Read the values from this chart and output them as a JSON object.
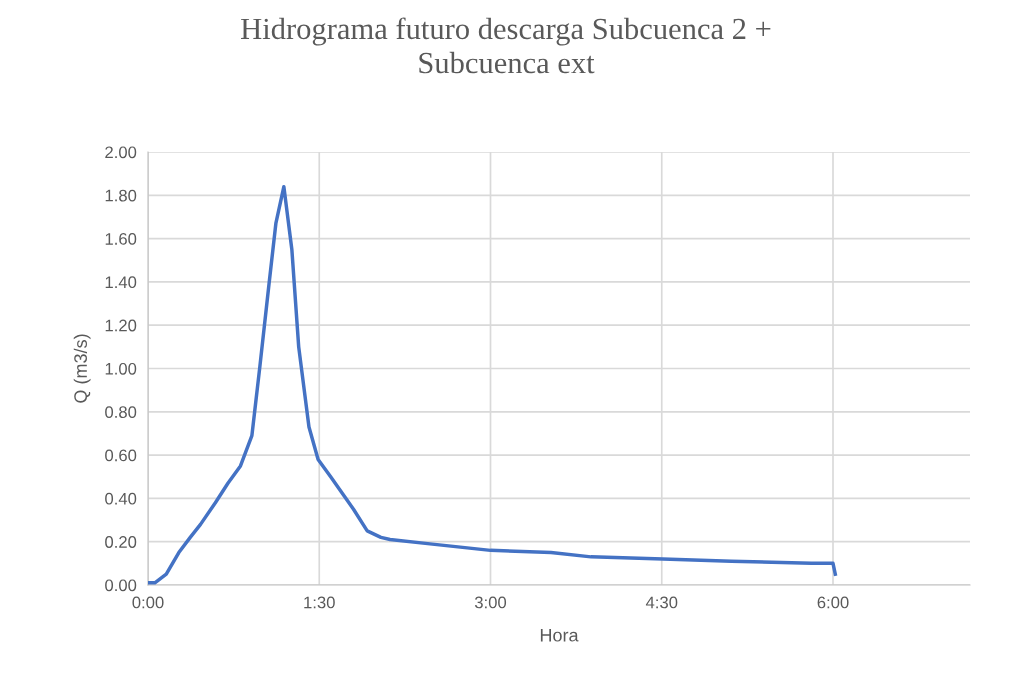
{
  "chart_data": {
    "type": "line",
    "title": "Hidrograma futuro descarga Subcuenca 2 +\nSubcuenca ext",
    "xlabel": "Hora",
    "ylabel": "Q (m3/s)",
    "xlim": [
      0,
      7.2
    ],
    "xticks": [
      {
        "value": 0,
        "label": "0:00"
      },
      {
        "value": 1.5,
        "label": "1:30"
      },
      {
        "value": 3,
        "label": "3:00"
      },
      {
        "value": 4.5,
        "label": "4:30"
      },
      {
        "value": 6,
        "label": "6:00"
      }
    ],
    "ylim": [
      0,
      2
    ],
    "yticks": [
      {
        "value": 0,
        "label": "0.00"
      },
      {
        "value": 0.2,
        "label": "0.20"
      },
      {
        "value": 0.4,
        "label": "0.40"
      },
      {
        "value": 0.6,
        "label": "0.60"
      },
      {
        "value": 0.8,
        "label": "0.80"
      },
      {
        "value": 1.0,
        "label": "1.00"
      },
      {
        "value": 1.2,
        "label": "1.20"
      },
      {
        "value": 1.4,
        "label": "1.40"
      },
      {
        "value": 1.6,
        "label": "1.60"
      },
      {
        "value": 1.8,
        "label": "1.80"
      },
      {
        "value": 2.0,
        "label": "2.00"
      }
    ],
    "grid": true,
    "marker": "none",
    "line_style": "solid",
    "series": [
      {
        "color": "#4472c4",
        "x": [
          0,
          0.06,
          0.16,
          0.27,
          0.37,
          0.46,
          0.59,
          0.7,
          0.81,
          0.91,
          0.98,
          1.06,
          1.12,
          1.19,
          1.26,
          1.32,
          1.41,
          1.49,
          1.6,
          1.68,
          1.8,
          1.92,
          2.04,
          2.12,
          2.47,
          3.0,
          3.53,
          3.88,
          4.51,
          5.11,
          5.81,
          6.0,
          6.02
        ],
        "values": [
          0.01,
          0.01,
          0.05,
          0.15,
          0.22,
          0.28,
          0.38,
          0.47,
          0.55,
          0.69,
          1.01,
          1.39,
          1.67,
          1.84,
          1.55,
          1.1,
          0.73,
          0.58,
          0.5,
          0.44,
          0.35,
          0.25,
          0.22,
          0.21,
          0.19,
          0.16,
          0.15,
          0.13,
          0.12,
          0.11,
          0.1,
          0.1,
          0.05
        ]
      }
    ]
  }
}
